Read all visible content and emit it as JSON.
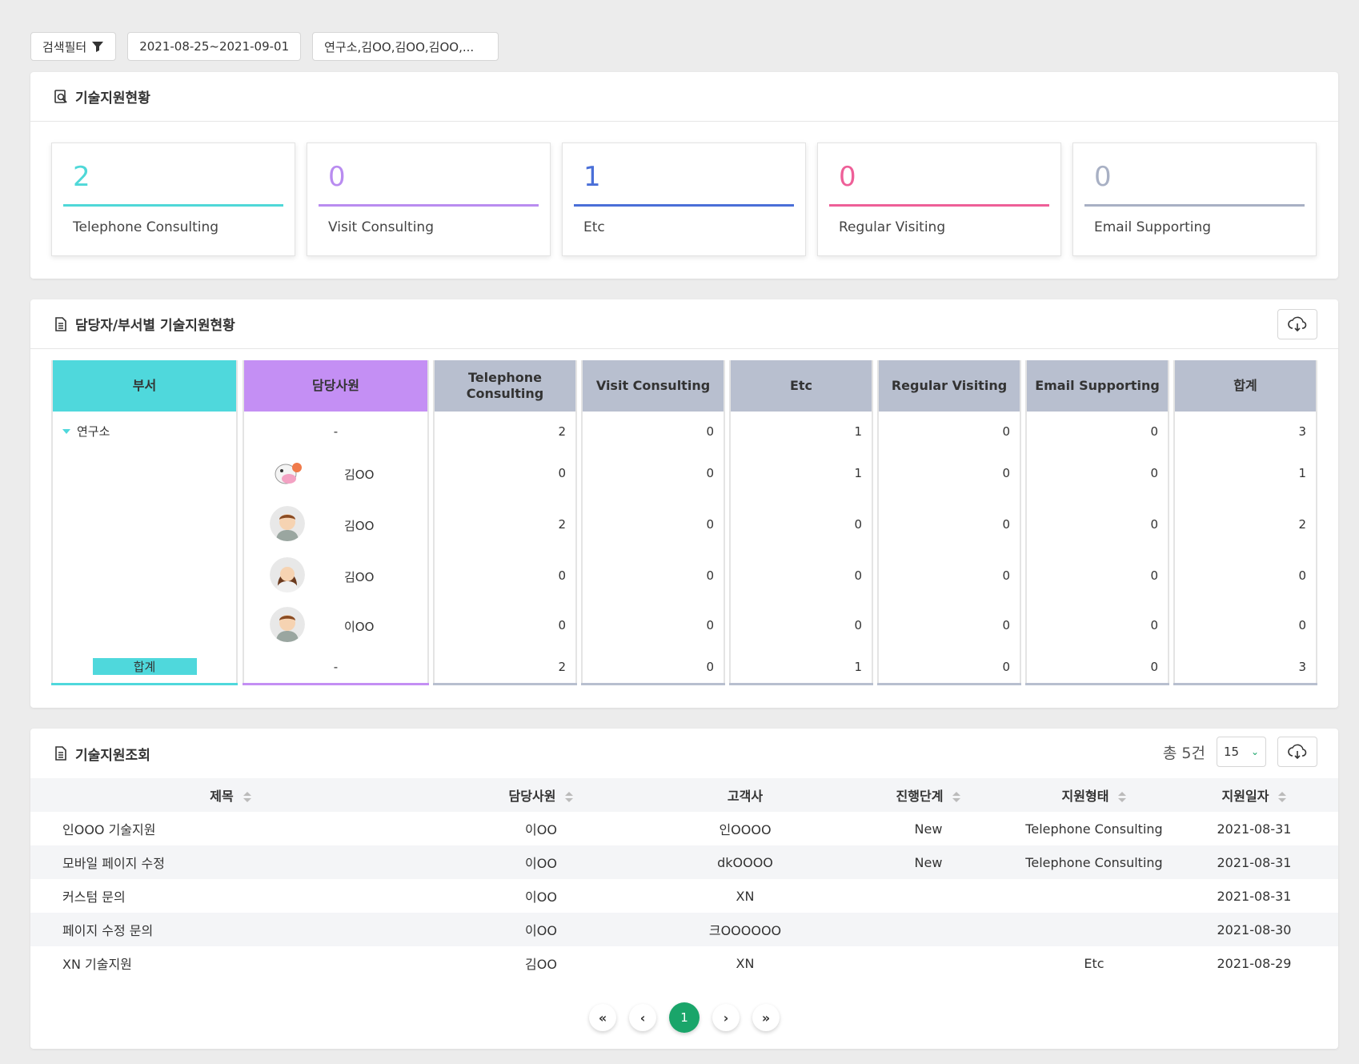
{
  "filters": {
    "filter_label": "검색필터",
    "date_range": "2021-08-25~2021-09-01",
    "org_people": "연구소,김OO,김OO,김OO,..."
  },
  "summary": {
    "title": "기술지원현황",
    "stats": [
      {
        "value": "2",
        "label": "Telephone Consulting",
        "color": "#4fd8d8"
      },
      {
        "value": "0",
        "label": "Visit Consulting",
        "color": "#b98cf0"
      },
      {
        "value": "1",
        "label": "Etc",
        "color": "#4a6fd8"
      },
      {
        "value": "0",
        "label": "Regular Visiting",
        "color": "#ee5f98"
      },
      {
        "value": "0",
        "label": "Email Supporting",
        "color": "#a8b0c4"
      }
    ]
  },
  "staff": {
    "title": "담당자/부서별 기술지원현황",
    "headers": {
      "dept": "부서",
      "person": "담당사원",
      "tel": "Telephone Consulting",
      "visit": "Visit Consulting",
      "etc": "Etc",
      "regular": "Regular Visiting",
      "email": "Email Supporting",
      "total": "합계"
    },
    "dept_name": "연구소",
    "total_label": "합계",
    "rows": [
      {
        "person": "-",
        "tel": "2",
        "visit": "0",
        "etc": "1",
        "regular": "0",
        "email": "0",
        "total": "3"
      },
      {
        "person": "김OO",
        "tel": "0",
        "visit": "0",
        "etc": "1",
        "regular": "0",
        "email": "0",
        "total": "1"
      },
      {
        "person": "김OO",
        "tel": "2",
        "visit": "0",
        "etc": "0",
        "regular": "0",
        "email": "0",
        "total": "2"
      },
      {
        "person": "김OO",
        "tel": "0",
        "visit": "0",
        "etc": "0",
        "regular": "0",
        "email": "0",
        "total": "0"
      },
      {
        "person": "이OO",
        "tel": "0",
        "visit": "0",
        "etc": "0",
        "regular": "0",
        "email": "0",
        "total": "0"
      },
      {
        "person": "-",
        "tel": "2",
        "visit": "0",
        "etc": "1",
        "regular": "0",
        "email": "0",
        "total": "3"
      }
    ],
    "colors": {
      "dept": "#4fd8dc",
      "person": "#c48ff4",
      "value": "#b8bfcf"
    }
  },
  "list": {
    "title": "기술지원조회",
    "count_text": "총 5건",
    "page_size": "15",
    "headers": [
      "제목",
      "담당사원",
      "고객사",
      "진행단계",
      "지원형태",
      "지원일자"
    ],
    "rows": [
      [
        "인OOO 기술지원",
        "이OO",
        "인OOOO",
        "New",
        "Telephone Consulting",
        "2021-08-31"
      ],
      [
        "모바일 페이지 수정",
        "이OO",
        "dkOOOO",
        "New",
        "Telephone Consulting",
        "2021-08-31"
      ],
      [
        "커스텀 문의",
        "이OO",
        "XN",
        "",
        "",
        "2021-08-31"
      ],
      [
        "페이지 수정 문의",
        "이OO",
        "크OOOOOO",
        "",
        "",
        "2021-08-30"
      ],
      [
        "XN 기술지원",
        "김OO",
        "XN",
        "",
        "Etc",
        "2021-08-29"
      ]
    ],
    "pagination": {
      "first": "«",
      "prev": "‹",
      "current": "1",
      "next": "›",
      "last": "»"
    }
  }
}
